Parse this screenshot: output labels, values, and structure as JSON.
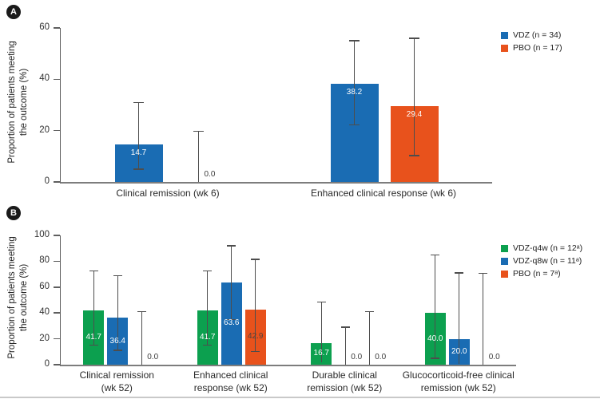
{
  "colors": {
    "vdz_blue": "#1a6cb3",
    "pbo_orange": "#e8521c",
    "vdz_q4w_green": "#0ca04f",
    "error_bar": "#4d4d4d",
    "axis": "#5f5f5f",
    "baseline": "#7d7d7d",
    "text": "#2a2a2a",
    "value_label": "#ffffff",
    "value_label_dark": "#53423a",
    "badge_bg": "#1a1a1a",
    "badge_fg": "#ffffff",
    "bottom_rule": "#c9c9c9"
  },
  "chart_data": [
    {
      "id": "panel_a",
      "type": "bar",
      "badge": "A",
      "ylabel_lines": [
        "Proportion of patients meeting",
        "the outcome (%)"
      ],
      "ylim": [
        0,
        60
      ],
      "yticks": [
        0,
        20,
        40,
        60
      ],
      "grid": false,
      "legend_position": "right-top",
      "legend": [
        {
          "label": "VDZ (n = 34)",
          "color_key": "vdz_blue"
        },
        {
          "label": "PBO (n = 17)",
          "color_key": "pbo_orange"
        }
      ],
      "categories": [
        "Clinical remission (wk 6)",
        "Enhanced clinical response (wk 6)"
      ],
      "category_label_lines": [
        [
          "Clinical remission (wk 6)"
        ],
        [
          "Enhanced clinical response (wk 6)"
        ]
      ],
      "value_label_style": "near-top",
      "series": [
        {
          "name": "VDZ (n = 34)",
          "color_key": "vdz_blue",
          "values": [
            14.7,
            38.2
          ],
          "ci_low": [
            5.0,
            22.2
          ],
          "ci_high": [
            31.0,
            55.0
          ]
        },
        {
          "name": "PBO (n = 17)",
          "color_key": "pbo_orange",
          "values": [
            0.0,
            29.4
          ],
          "ci_low": [
            0.0,
            10.3
          ],
          "ci_high": [
            19.7,
            56.0
          ]
        }
      ]
    },
    {
      "id": "panel_b",
      "type": "bar",
      "badge": "B",
      "ylabel_lines": [
        "Proportion of patients meeting",
        "the outcome (%)"
      ],
      "ylim": [
        0,
        100
      ],
      "yticks": [
        0,
        20,
        40,
        60,
        80,
        100
      ],
      "grid": false,
      "legend_position": "right-top",
      "legend": [
        {
          "label": "VDZ-q4w (n = 12ᵃ)",
          "color_key": "vdz_q4w_green"
        },
        {
          "label": "VDZ-q8w (n = 11ᵃ)",
          "color_key": "vdz_blue"
        },
        {
          "label": "PBO (n = 7ᵃ)",
          "color_key": "pbo_orange"
        }
      ],
      "categories": [
        "Clinical remission (wk 52)",
        "Enhanced clinical response (wk 52)",
        "Durable clinical remission (wk 52)",
        "Glucocorticoid-free clinical remission (wk 52)"
      ],
      "category_label_lines": [
        [
          "Clinical remission",
          "(wk 52)"
        ],
        [
          "Enhanced clinical",
          "response (wk 52)"
        ],
        [
          "Durable clinical",
          "remission (wk 52)"
        ],
        [
          "Glucocorticoid-free clinical",
          "remission (wk 52)"
        ]
      ],
      "value_label_style": "center",
      "series": [
        {
          "name": "VDZ-q4w (n = 12ᵃ)",
          "color_key": "vdz_q4w_green",
          "values": [
            41.7,
            41.7,
            16.7,
            40.0
          ],
          "ci_low": [
            15.2,
            15.2,
            2.0,
            5.0
          ],
          "ci_high": [
            72.5,
            72.5,
            48.5,
            85.0
          ]
        },
        {
          "name": "VDZ-q8w (n = 11ᵃ)",
          "color_key": "vdz_blue",
          "values": [
            36.4,
            63.6,
            0.0,
            20.0
          ],
          "ci_low": [
            11.0,
            35.0,
            0.0,
            0.5
          ],
          "ci_high": [
            69.0,
            92.0,
            29.0,
            71.0
          ]
        },
        {
          "name": "PBO (n = 7ᵃ)",
          "color_key": "pbo_orange",
          "values": [
            0.0,
            42.9,
            0.0,
            0.0
          ],
          "ci_low": [
            0.0,
            10.0,
            0.0,
            0.0
          ],
          "ci_high": [
            41.0,
            81.5,
            41.0,
            70.5
          ],
          "value_label_dark_indices": [
            1
          ]
        }
      ]
    }
  ]
}
